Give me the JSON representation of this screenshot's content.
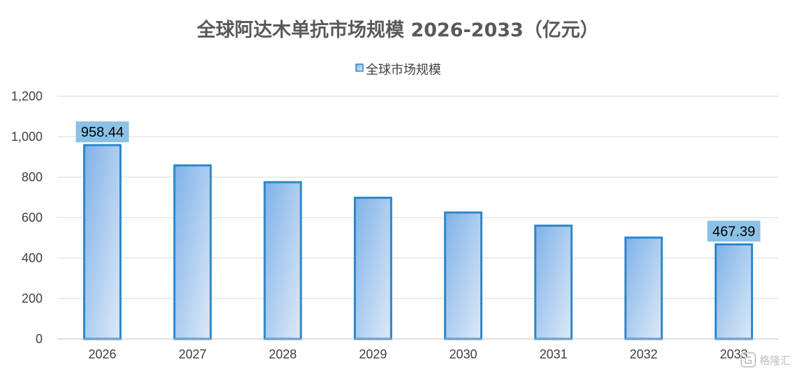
{
  "chart_data": {
    "type": "bar",
    "title": "全球阿达木单抗市场规模 2026-2033（亿元）",
    "xlabel": "",
    "ylabel": "",
    "categories": [
      "2026",
      "2027",
      "2028",
      "2029",
      "2030",
      "2031",
      "2032",
      "2033"
    ],
    "series": [
      {
        "name": "全球市场规模",
        "values": [
          958.44,
          858,
          775,
          698,
          625,
          560,
          501,
          467.39
        ]
      }
    ],
    "data_labels": [
      {
        "index": 0,
        "text": "958.44"
      },
      {
        "index": 7,
        "text": "467.39"
      }
    ],
    "ylim": [
      0,
      1200
    ],
    "yticks": [
      0,
      200,
      400,
      600,
      800,
      1000,
      1200
    ],
    "ytick_labels": [
      "0",
      "200",
      "400",
      "600",
      "800",
      "1,000",
      "1,200"
    ],
    "grid": "horizontal",
    "legend_position": "top",
    "colors": {
      "bar_stroke": "#2e86c8",
      "bar_fill_dark": "#7fb2e8",
      "bar_fill_light": "#dde9f8",
      "label_bg": "#8cc1e6",
      "grid": "#d9d9d9",
      "axis": "#bfbfbf"
    }
  },
  "watermark": {
    "icon": "gelonghui-logo-icon",
    "text": "格隆汇"
  }
}
